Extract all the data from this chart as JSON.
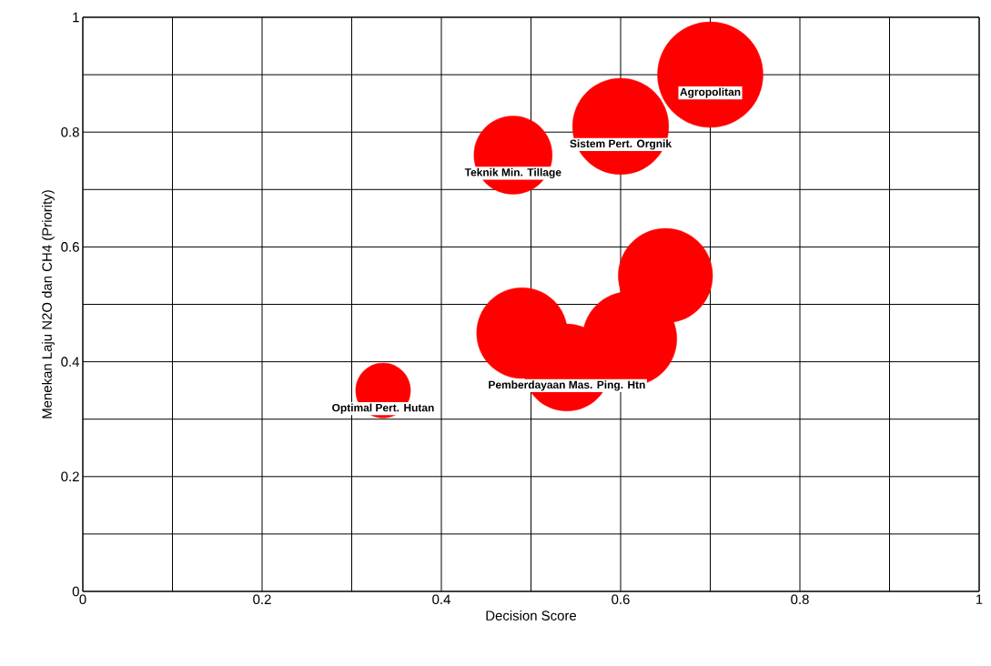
{
  "chart_data": {
    "type": "bubble",
    "xlabel": "Decision Score",
    "ylabel": "Menekan Laju N2O dan CH4 (Priority)",
    "xlim": [
      0,
      1
    ],
    "ylim": [
      0,
      1
    ],
    "xticks": [
      0,
      {
        "value": 0.1,
        "label": null
      },
      0.2,
      {
        "value": 0.3,
        "label": null
      },
      0.4,
      {
        "value": 0.5,
        "label": null
      },
      0.6,
      {
        "value": 0.7,
        "label": null
      },
      0.8,
      {
        "value": 0.9,
        "label": null
      },
      1
    ],
    "yticks": [
      0,
      {
        "value": 0.1,
        "label": null
      },
      0.2,
      {
        "value": 0.3,
        "label": null
      },
      0.4,
      {
        "value": 0.5,
        "label": null
      },
      0.6,
      {
        "value": 0.7,
        "label": null
      },
      0.8,
      {
        "value": 0.9,
        "label": null
      },
      1
    ],
    "grid": true,
    "series": [
      {
        "color": "#ff0000",
        "x": [
          0.7,
          0.6,
          0.48,
          0.335,
          0.65,
          0.49,
          0.61,
          0.54
        ],
        "values": [
          0.9,
          0.81,
          0.76,
          0.35,
          0.55,
          0.45,
          0.44,
          0.39
        ],
        "sizes": [
          1,
          0.83,
          0.55,
          0.27,
          0.8,
          0.74,
          0.8,
          0.68
        ]
      }
    ],
    "annotations": [
      {
        "text": "Agropolitan",
        "x": 0.7,
        "y": 0.9
      },
      {
        "text": "Sistem Pert. Orgnik",
        "x": 0.6,
        "y": 0.81
      },
      {
        "text": "Teknik Min. Tillage",
        "x": 0.48,
        "y": 0.76
      },
      {
        "text": "Optimal Pert. Hutan",
        "x": 0.335,
        "y": 0.35
      },
      {
        "text": "Pemberdayaan Mas. Ping. Htn",
        "x": 0.54,
        "y": 0.39
      }
    ]
  }
}
